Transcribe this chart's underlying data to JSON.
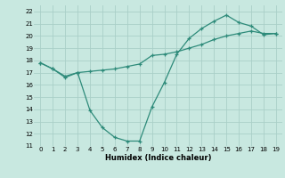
{
  "line1_x": [
    0,
    1,
    2,
    3,
    4,
    5,
    6,
    7,
    8,
    9,
    10,
    11,
    12,
    13,
    14,
    15,
    16,
    17,
    18,
    19
  ],
  "line1_y": [
    17.8,
    17.3,
    16.6,
    17.0,
    13.9,
    12.5,
    11.7,
    11.4,
    11.4,
    14.2,
    16.2,
    18.5,
    19.8,
    20.6,
    21.2,
    21.7,
    21.1,
    20.8,
    20.1,
    20.2
  ],
  "line2_x": [
    0,
    1,
    2,
    3,
    4,
    5,
    6,
    7,
    8,
    9,
    10,
    11,
    12,
    13,
    14,
    15,
    16,
    17,
    18,
    19
  ],
  "line2_y": [
    17.8,
    17.3,
    16.7,
    17.0,
    17.1,
    17.2,
    17.3,
    17.5,
    17.7,
    18.4,
    18.5,
    18.7,
    19.0,
    19.3,
    19.7,
    20.0,
    20.2,
    20.4,
    20.2,
    20.2
  ],
  "color": "#2e8b7a",
  "bg_color": "#c8e8e0",
  "grid_color": "#aacfc8",
  "xlabel": "Humidex (Indice chaleur)",
  "xlim": [
    -0.5,
    19.5
  ],
  "ylim": [
    11,
    22.5
  ],
  "yticks": [
    11,
    12,
    13,
    14,
    15,
    16,
    17,
    18,
    19,
    20,
    21,
    22
  ],
  "xticks": [
    0,
    1,
    2,
    3,
    4,
    5,
    6,
    7,
    8,
    9,
    10,
    11,
    12,
    13,
    14,
    15,
    16,
    17,
    18,
    19
  ]
}
